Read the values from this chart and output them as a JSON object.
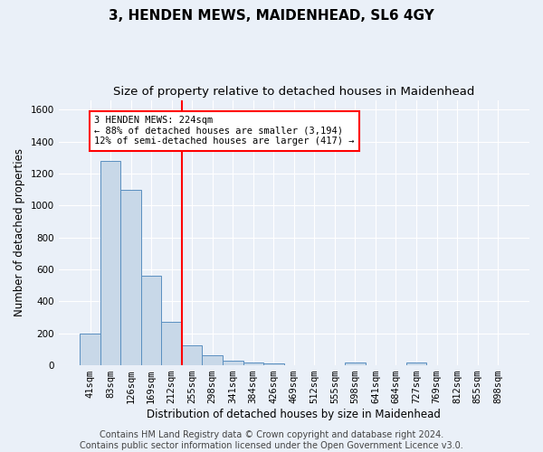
{
  "title": "3, HENDEN MEWS, MAIDENHEAD, SL6 4GY",
  "subtitle": "Size of property relative to detached houses in Maidenhead",
  "xlabel": "Distribution of detached houses by size in Maidenhead",
  "ylabel": "Number of detached properties",
  "bin_labels": [
    "41sqm",
    "83sqm",
    "126sqm",
    "169sqm",
    "212sqm",
    "255sqm",
    "298sqm",
    "341sqm",
    "384sqm",
    "426sqm",
    "469sqm",
    "512sqm",
    "555sqm",
    "598sqm",
    "641sqm",
    "684sqm",
    "727sqm",
    "769sqm",
    "812sqm",
    "855sqm",
    "898sqm"
  ],
  "bar_values": [
    200,
    1280,
    1100,
    560,
    270,
    125,
    60,
    30,
    20,
    10,
    0,
    0,
    0,
    15,
    0,
    0,
    15,
    0,
    0,
    0,
    0
  ],
  "bar_color": "#c8d8e8",
  "bar_edge_color": "#5a8fc0",
  "vline_x_bin": 4.5,
  "annotation_line1": "3 HENDEN MEWS: 224sqm",
  "annotation_line2": "← 88% of detached houses are smaller (3,194)",
  "annotation_line3": "12% of semi-detached houses are larger (417) →",
  "annotation_box_color": "white",
  "annotation_box_edge_color": "red",
  "vline_color": "red",
  "ylim": [
    0,
    1660
  ],
  "yticks": [
    0,
    200,
    400,
    600,
    800,
    1000,
    1200,
    1400,
    1600
  ],
  "footer_text": "Contains HM Land Registry data © Crown copyright and database right 2024.\nContains public sector information licensed under the Open Government Licence v3.0.",
  "background_color": "#eaf0f8",
  "grid_color": "white",
  "title_fontsize": 11,
  "subtitle_fontsize": 9.5,
  "axis_label_fontsize": 8.5,
  "tick_fontsize": 7.5,
  "footer_fontsize": 7
}
